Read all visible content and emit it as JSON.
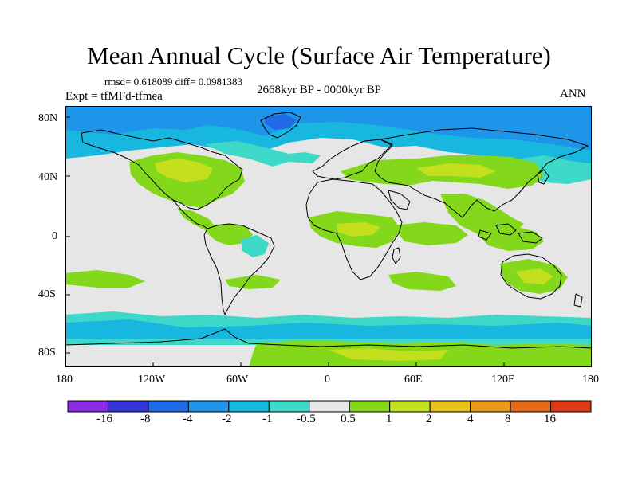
{
  "title": "Mean Annual Cycle (Surface Air Temperature)",
  "stats": "rmsd= 0.618089 diff= 0.0981383",
  "experiment": "Expt = tfMFd-tfmea",
  "period": "2668kyr BP - 0000kyr BP",
  "season": "ANN",
  "map": {
    "projection": "cylindrical-equidistant",
    "lat_labels": [
      "80N",
      "40N",
      "0",
      "40S",
      "80S"
    ],
    "lon_labels": [
      "180",
      "120W",
      "60W",
      "0",
      "60E",
      "120E",
      "180"
    ],
    "background_color": "#e6e6e6",
    "coastline_color": "#000000"
  },
  "colorbar": {
    "colors": [
      "#8b2be2",
      "#3535d6",
      "#1e6be5",
      "#1e95e8",
      "#17b7e0",
      "#3ed8c8",
      "#e6e6e6",
      "#83d81c",
      "#c3df1e",
      "#e6c21a",
      "#e8981c",
      "#e56a1a",
      "#df3a17"
    ],
    "labels": [
      "-16",
      "-8",
      "-4",
      "-2",
      "-1",
      "-0.5",
      "0.5",
      "1",
      "2",
      "4",
      "8",
      "16"
    ]
  }
}
